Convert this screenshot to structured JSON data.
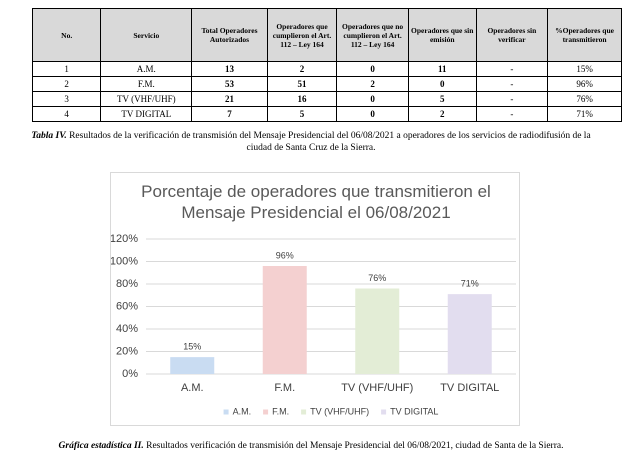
{
  "table": {
    "header": [
      "No.",
      "Servicio",
      "Total Operadores Autorizados",
      "Operadores que cumplieron el Art. 112 – Ley 164",
      "Operadores que no cumplieron el Art. 112 – Ley 164",
      "Operadores que sin emisión",
      "Operadores sin verificar",
      "%Operadores que transmitieron"
    ],
    "rows": [
      [
        "1",
        "A.M.",
        "13",
        "2",
        "0",
        "11",
        "-",
        "15%"
      ],
      [
        "2",
        "F.M.",
        "53",
        "51",
        "2",
        "0",
        "-",
        "96%"
      ],
      [
        "3",
        "TV (VHF/UHF)",
        "21",
        "16",
        "0",
        "5",
        "-",
        "76%"
      ],
      [
        "4",
        "TV DIGITAL",
        "7",
        "5",
        "0",
        "2",
        "-",
        "71%"
      ]
    ]
  },
  "table_caption": {
    "label": "Tabla IV.",
    "text": " Resultados de la verificación de transmisión del Mensaje Presidencial del 06/08/2021 a operadores de los servicios de radiodifusión de la ciudad de Santa Cruz de la Sierra."
  },
  "chart_data": {
    "type": "bar",
    "title": "Porcentaje de operadores que transmitieron el Mensaje Presidencial el 06/08/2021",
    "categories": [
      "A.M.",
      "F.M.",
      "TV (VHF/UHF)",
      "TV DIGITAL"
    ],
    "values": [
      15,
      96,
      76,
      71
    ],
    "value_labels": [
      "15%",
      "96%",
      "76%",
      "71%"
    ],
    "colors": [
      "#c9dcf2",
      "#f4d0d0",
      "#e3edd6",
      "#e2ddef"
    ],
    "ylim": [
      0,
      120
    ],
    "yticks": [
      {
        "value": 0,
        "label": "0%"
      },
      {
        "value": 20,
        "label": "20%"
      },
      {
        "value": 40,
        "label": "40%"
      },
      {
        "value": 60,
        "label": "60%"
      },
      {
        "value": 80,
        "label": "80%"
      },
      {
        "value": 100,
        "label": "100%"
      },
      {
        "value": 120,
        "label": "120%"
      }
    ],
    "grid": true,
    "legend": "bottom"
  },
  "chart_caption": {
    "label": "Gráfica estadística II.",
    "text": " Resultados verificación de transmisión del Mensaje Presidencial del 06/08/2021, ciudad de Santa de la Sierra."
  }
}
